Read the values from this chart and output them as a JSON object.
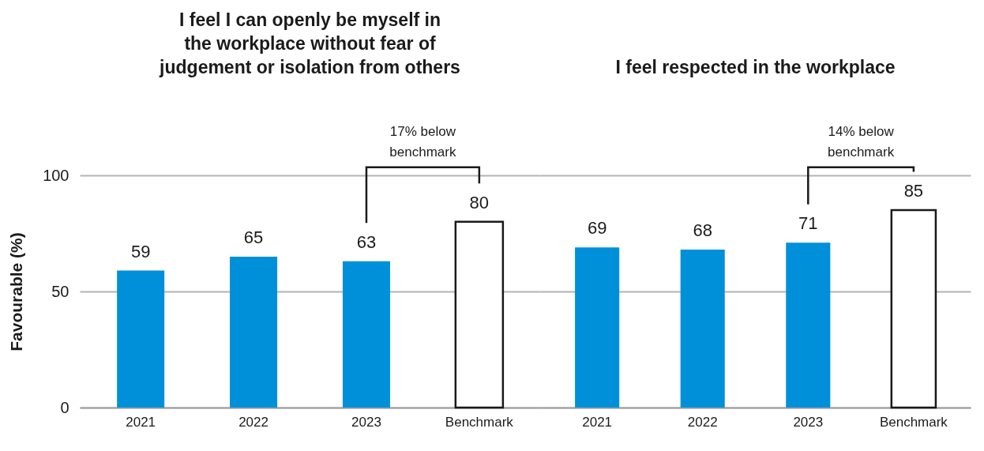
{
  "chart_data": [
    {
      "type": "bar",
      "title": "I feel I can openly be myself in the workplace without fear of judgement or isolation from others",
      "ylabel": "Favourable (%)",
      "categories": [
        "2021",
        "2022",
        "2023",
        "Benchmark"
      ],
      "values": [
        59,
        65,
        63,
        80
      ],
      "colors": [
        "#0090da",
        "#0090da",
        "#0090da",
        "#ffffff"
      ],
      "ylim": [
        0,
        100
      ],
      "yticks": [
        0,
        50,
        100
      ],
      "grid": "y",
      "data_labels": true,
      "annotations": [
        "17% below benchmark"
      ]
    },
    {
      "type": "bar",
      "title": "I feel respected in the workplace",
      "categories": [
        "2021",
        "2022",
        "2023",
        "Benchmark"
      ],
      "values": [
        69,
        68,
        71,
        85
      ],
      "colors": [
        "#0090da",
        "#0090da",
        "#0090da",
        "#ffffff"
      ],
      "ylim": [
        0,
        100
      ],
      "yticks": [
        0,
        50,
        100
      ],
      "grid": "y",
      "tick_labels": "x",
      "data_labels": true,
      "annotations": [
        "14% below benchmark"
      ]
    }
  ]
}
